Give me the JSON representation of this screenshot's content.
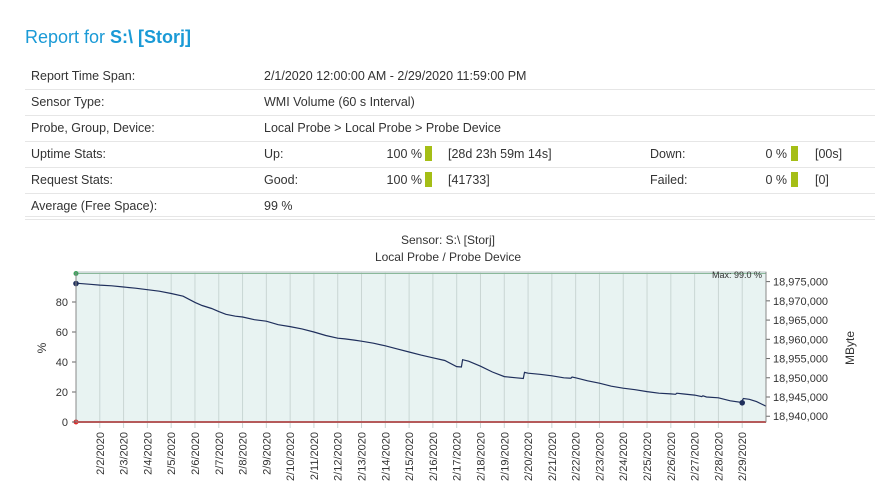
{
  "header": {
    "title_prefix": "Report for ",
    "title_name": "S:\\ [Storj]"
  },
  "stats": {
    "time_span_label": "Report Time Span:",
    "time_span_value": "2/1/2020 12:00:00 AM - 2/29/2020 11:59:00 PM",
    "sensor_type_label": "Sensor Type:",
    "sensor_type_value": "WMI Volume (60 s Interval)",
    "probe_label": "Probe, Group, Device:",
    "probe_value": "Local Probe > Local Probe > Probe Device",
    "uptime_label": "Uptime Stats:",
    "up_label": "Up:",
    "up_percent": "100 %",
    "up_time": "[28d 23h 59m 14s]",
    "down_label": "Down:",
    "down_percent": "0 %",
    "down_time": "[00s]",
    "request_label": "Request Stats:",
    "good_label": "Good:",
    "good_percent": "100 %",
    "good_count": "[41733]",
    "failed_label": "Failed:",
    "failed_percent": "0 %",
    "failed_count": "[0]",
    "average_label": "Average (Free Space):",
    "average_value": "99 %",
    "bar_color": "#a5be16"
  },
  "chart_data": {
    "type": "line",
    "title": "Sensor: S:\\ [Storj]",
    "subtitle": "Local Probe / Probe Device",
    "ylabel": "%",
    "y2label": "MByte",
    "max_annotation": "Max: 99.0 %",
    "ylim": [
      0,
      100
    ],
    "yticks": [
      0,
      20,
      40,
      60,
      80
    ],
    "y2lim": [
      18938500,
      18977500
    ],
    "y2ticks": [
      "18,940,000",
      "18,945,000",
      "18,950,000",
      "18,955,000",
      "18,960,000",
      "18,965,000",
      "18,970,000",
      "18,975,000"
    ],
    "y2tick_values": [
      18940000,
      18945000,
      18950000,
      18955000,
      18960000,
      18965000,
      18970000,
      18975000
    ],
    "xlim": [
      1,
      30
    ],
    "categories": [
      "2/2/2020",
      "2/3/2020",
      "2/4/2020",
      "2/5/2020",
      "2/6/2020",
      "2/7/2020",
      "2/8/2020",
      "2/9/2020",
      "2/10/2020",
      "2/11/2020",
      "2/12/2020",
      "2/13/2020",
      "2/14/2020",
      "2/15/2020",
      "2/16/2020",
      "2/17/2020",
      "2/18/2020",
      "2/19/2020",
      "2/20/2020",
      "2/21/2020",
      "2/22/2020",
      "2/23/2020",
      "2/24/2020",
      "2/25/2020",
      "2/26/2020",
      "2/27/2020",
      "2/28/2020",
      "2/29/2020"
    ],
    "category_x": [
      2,
      3,
      4,
      5,
      6,
      7,
      8,
      9,
      10,
      11,
      12,
      13,
      14,
      15,
      16,
      17,
      18,
      19,
      20,
      21,
      22,
      23,
      24,
      25,
      26,
      27,
      28,
      29
    ],
    "series": [
      {
        "color": "#1f2f5c",
        "x": [
          1,
          1.6,
          2,
          2.5,
          3,
          3.5,
          4,
          4.5,
          5,
          5.5,
          6,
          6.3,
          6.7,
          7,
          7.3,
          7.7,
          8,
          8.5,
          9,
          9.5,
          10,
          10.5,
          11,
          11.5,
          12,
          12.3,
          12.7,
          13,
          13.5,
          14,
          14.5,
          15,
          15.5,
          16,
          16.5,
          17,
          17.2,
          17.25,
          17.5,
          18,
          18.5,
          19,
          19.5,
          19.8,
          19.85,
          20,
          20.5,
          21,
          21.5,
          21.8,
          21.85,
          22,
          22.5,
          23,
          23.5,
          24,
          24.5,
          25,
          25.5,
          26,
          26.2,
          26.25,
          26.5,
          27,
          27.3,
          27.35,
          27.5,
          28,
          28.5,
          28.95,
          29.05,
          29.3,
          29.6,
          30
        ],
        "y": [
          18974600,
          18974300,
          18974100,
          18973900,
          18973600,
          18973300,
          18972900,
          18972500,
          18971900,
          18971200,
          18969600,
          18968800,
          18968000,
          18967200,
          18966500,
          18966000,
          18965800,
          18965100,
          18964700,
          18963800,
          18963300,
          18962700,
          18961900,
          18961000,
          18960300,
          18960100,
          18959800,
          18959500,
          18959000,
          18958300,
          18957500,
          18956700,
          18955900,
          18955200,
          18954500,
          18952900,
          18952800,
          18954700,
          18954300,
          18953000,
          18951500,
          18950300,
          18950000,
          18949800,
          18951400,
          18951200,
          18950900,
          18950500,
          18950000,
          18949900,
          18950200,
          18950000,
          18949200,
          18948600,
          18947800,
          18947300,
          18946900,
          18946400,
          18946000,
          18945800,
          18945700,
          18946000,
          18945800,
          18945500,
          18945100,
          18945300,
          18945000,
          18944800,
          18944000,
          18943600,
          18944600,
          18944400,
          18943800,
          18942600
        ]
      }
    ],
    "max_marker": {
      "x": 1,
      "y": 18974500
    },
    "min_marker": {
      "x": 29,
      "y": 18943500
    },
    "line_color": "#1f2f5c",
    "plot_bg": "#e8f3f2",
    "max_line_color": "#8ab89a",
    "zero_line_color": "#e22b2b"
  }
}
